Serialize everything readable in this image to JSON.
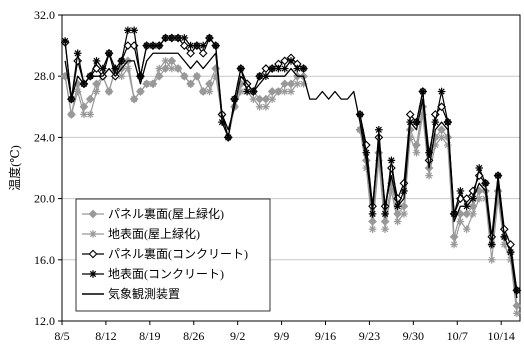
{
  "chart_data": {
    "type": "line",
    "title": "",
    "xlabel": "",
    "ylabel": "温度(℃)",
    "ylim": [
      12,
      32
    ],
    "yticks": [
      "12.0",
      "16.0",
      "20.0",
      "24.0",
      "28.0",
      "32.0"
    ],
    "xticks": [
      "8/5",
      "8/12",
      "8/19",
      "8/26",
      "9/2",
      "9/9",
      "9/16",
      "9/23",
      "9/30",
      "10/7",
      "10/14"
    ],
    "x_start_label": "8/5",
    "day_count": 73,
    "grid": "horizontal",
    "legend": "bottom-left",
    "series": [
      {
        "name": "パネル裏面(屋上緑化)",
        "marker": "diamond-filled",
        "color": "#999999",
        "values": [
          28.0,
          25.5,
          27.5,
          26.0,
          26.5,
          27.5,
          28.0,
          27.0,
          28.5,
          28.5,
          29.0,
          26.5,
          27.0,
          27.5,
          27.5,
          28.0,
          28.5,
          29.0,
          28.5,
          28.0,
          27.5,
          28.0,
          27.0,
          27.5,
          28.5,
          25.5,
          24.0,
          26.0,
          27.5,
          27.5,
          27.0,
          26.5,
          26.5,
          27.0,
          27.0,
          27.5,
          27.5,
          28.0,
          28.0,
          null,
          null,
          null,
          null,
          null,
          null,
          null,
          null,
          24.5,
          22.5,
          18.5,
          23.0,
          18.5,
          21.0,
          19.0,
          19.5,
          24.5,
          23.5,
          26.0,
          22.0,
          24.0,
          24.5,
          24.0,
          17.5,
          19.0,
          19.0,
          19.5,
          20.5,
          20.5,
          17.0,
          20.5,
          17.5,
          16.5,
          13.0
        ]
      },
      {
        "name": "地表面(屋上緑化)",
        "marker": "asterisk",
        "color": "#999999",
        "values": [
          28.0,
          25.5,
          27.0,
          25.5,
          25.5,
          27.0,
          28.0,
          27.0,
          28.5,
          28.0,
          28.5,
          26.5,
          27.0,
          27.5,
          27.5,
          28.5,
          29.0,
          28.5,
          28.5,
          28.0,
          27.5,
          28.0,
          27.0,
          27.0,
          28.0,
          25.5,
          24.0,
          26.0,
          27.0,
          27.0,
          26.5,
          26.0,
          26.0,
          26.5,
          27.0,
          27.0,
          27.0,
          27.5,
          27.5,
          null,
          null,
          null,
          null,
          null,
          null,
          null,
          null,
          24.5,
          22.0,
          18.0,
          22.5,
          18.0,
          20.5,
          18.5,
          19.0,
          24.0,
          23.0,
          25.5,
          21.5,
          23.5,
          24.0,
          23.5,
          17.0,
          18.5,
          18.0,
          19.0,
          20.0,
          20.0,
          16.0,
          20.0,
          17.0,
          16.0,
          12.5
        ]
      },
      {
        "name": "パネル裏面(コンクリート)",
        "marker": "diamond-open",
        "color": "#000000",
        "values": [
          30.2,
          26.5,
          29.0,
          27.5,
          28.0,
          28.5,
          28.0,
          29.5,
          28.0,
          29.0,
          30.0,
          30.0,
          28.0,
          30.0,
          30.0,
          30.0,
          30.5,
          30.5,
          30.5,
          30.0,
          29.5,
          30.0,
          29.5,
          30.5,
          30.0,
          25.5,
          24.0,
          26.5,
          28.5,
          27.5,
          27.0,
          28.0,
          28.5,
          28.5,
          28.8,
          29.0,
          29.2,
          28.8,
          28.5,
          null,
          null,
          null,
          null,
          null,
          null,
          null,
          null,
          25.5,
          23.5,
          19.5,
          24.0,
          19.5,
          22.0,
          20.0,
          21.0,
          25.5,
          25.0,
          27.0,
          22.5,
          25.5,
          26.0,
          25.0,
          19.0,
          20.0,
          20.0,
          20.5,
          21.5,
          21.0,
          17.5,
          21.5,
          18.0,
          17.0,
          14.0
        ]
      },
      {
        "name": "地表面(コンクリート)",
        "marker": "asterisk",
        "color": "#000000",
        "values": [
          30.3,
          26.5,
          29.5,
          27.5,
          28.0,
          29.0,
          28.5,
          29.5,
          28.5,
          29.0,
          31.0,
          31.0,
          28.0,
          30.0,
          30.0,
          30.0,
          30.5,
          30.5,
          30.5,
          30.5,
          30.0,
          30.0,
          30.0,
          30.5,
          30.0,
          25.0,
          24.0,
          26.5,
          28.5,
          27.0,
          27.0,
          28.0,
          28.0,
          28.5,
          28.5,
          28.5,
          29.0,
          28.5,
          28.5,
          null,
          null,
          null,
          null,
          null,
          null,
          null,
          null,
          25.5,
          23.0,
          19.0,
          24.5,
          19.0,
          22.5,
          19.5,
          20.5,
          25.0,
          25.0,
          27.0,
          23.0,
          25.0,
          27.0,
          25.0,
          19.0,
          20.5,
          19.5,
          20.0,
          22.0,
          21.0,
          17.0,
          21.5,
          17.5,
          16.5,
          14.0
        ]
      },
      {
        "name": "気象観測装置",
        "marker": "none",
        "color": "#000000",
        "values": [
          29.0,
          26.5,
          28.0,
          27.5,
          28.0,
          28.0,
          28.0,
          28.5,
          28.0,
          28.5,
          29.0,
          29.0,
          27.5,
          29.0,
          29.5,
          29.5,
          29.5,
          29.5,
          29.5,
          29.0,
          28.5,
          29.0,
          28.5,
          29.0,
          29.5,
          25.5,
          24.5,
          26.0,
          28.0,
          27.5,
          27.0,
          27.5,
          28.0,
          28.0,
          28.0,
          28.0,
          28.5,
          28.0,
          28.0,
          26.5,
          26.5,
          27.0,
          26.5,
          27.0,
          26.5,
          26.5,
          27.0,
          25.0,
          22.5,
          19.5,
          23.5,
          19.5,
          21.5,
          19.5,
          20.0,
          25.0,
          24.5,
          26.5,
          22.0,
          24.5,
          25.0,
          24.5,
          18.5,
          19.5,
          19.5,
          20.0,
          21.0,
          20.5,
          17.0,
          21.0,
          17.5,
          16.5,
          13.5
        ]
      }
    ]
  }
}
